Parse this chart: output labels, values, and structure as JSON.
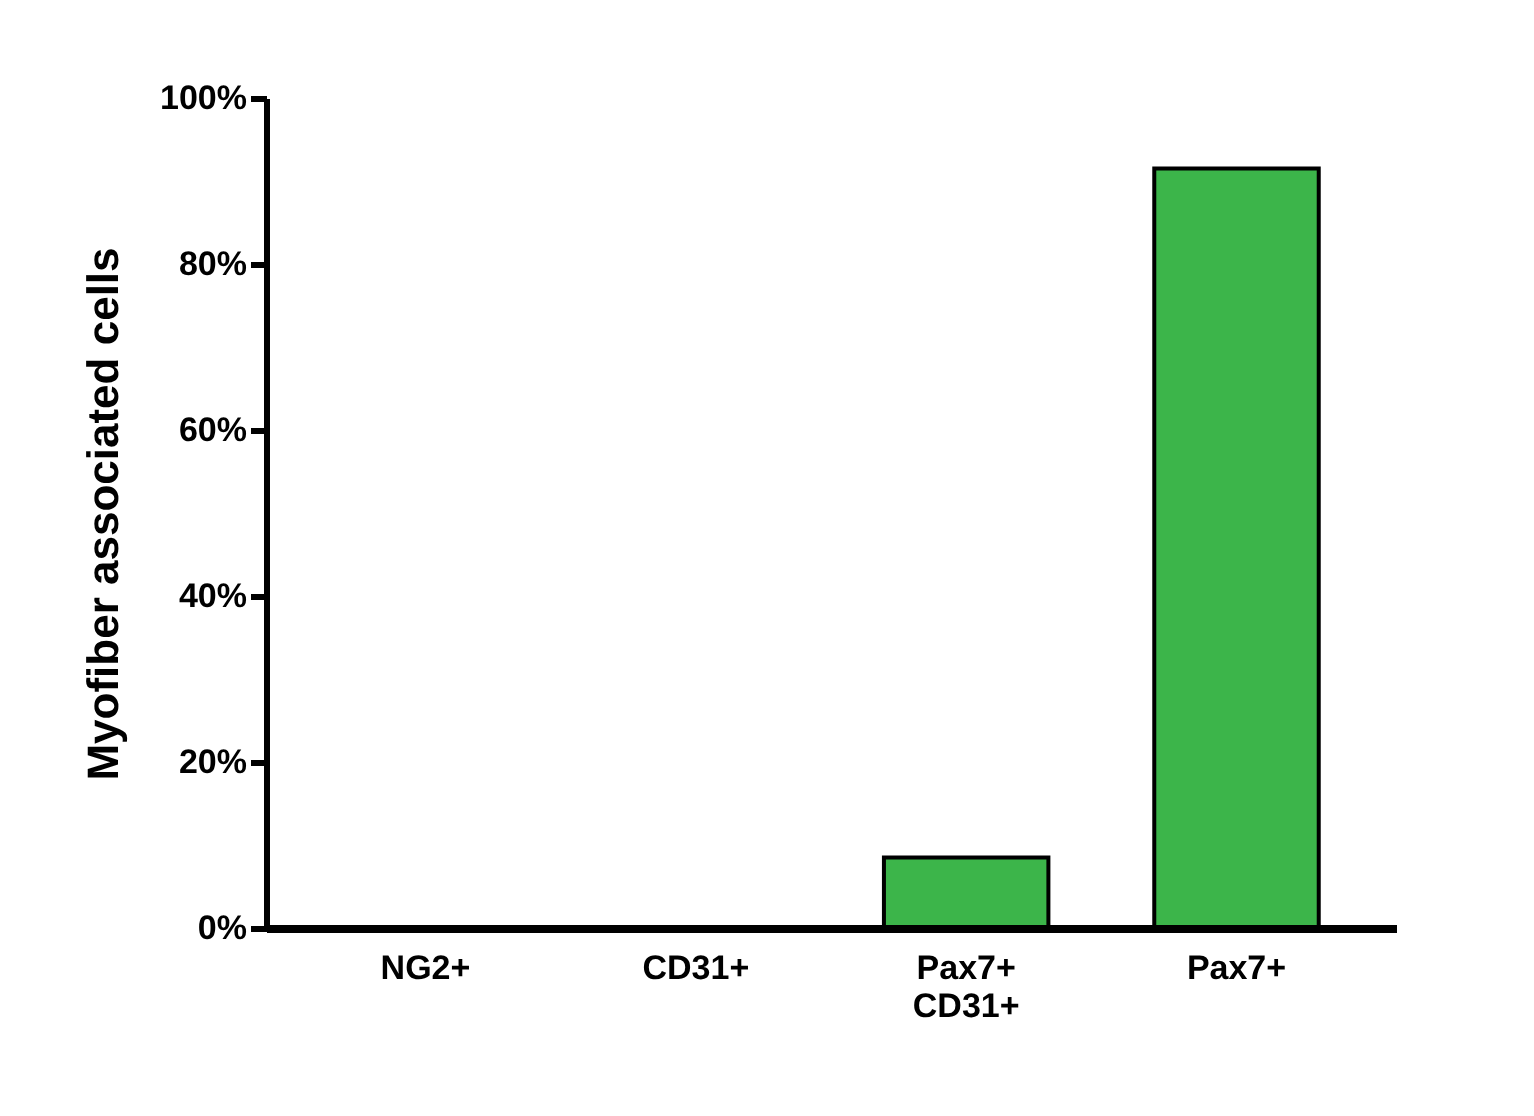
{
  "chart_data": {
    "type": "bar",
    "ylabel": "Myofiber associated cells",
    "categories": [
      "NG2+",
      "CD31+",
      "Pax7+\nCD31+",
      "Pax7+"
    ],
    "values": [
      0,
      0,
      8.5,
      91.5
    ],
    "color": "#3cb54a",
    "ylim": [
      0,
      100
    ],
    "yticks": [
      {
        "value": 0,
        "label": "0%"
      },
      {
        "value": 20,
        "label": "20%"
      },
      {
        "value": 40,
        "label": "40%"
      },
      {
        "value": 60,
        "label": "60%"
      },
      {
        "value": 80,
        "label": "80%"
      },
      {
        "value": 100,
        "label": "100%"
      }
    ],
    "grid": false
  }
}
